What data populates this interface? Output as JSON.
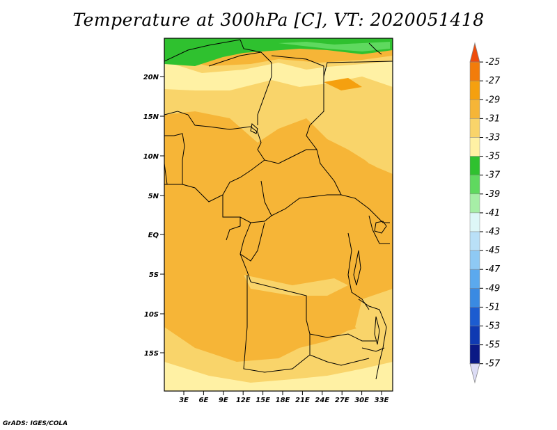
{
  "title": "Temperature at 300hPa [C], VT: 2020051418",
  "credit": "GrADS: IGES/COLA",
  "map": {
    "lat_ticks": [
      "20N",
      "15N",
      "10N",
      "5N",
      "EQ",
      "5S",
      "10S",
      "15S"
    ],
    "lon_ticks": [
      "3E",
      "6E",
      "9E",
      "12E",
      "15E",
      "18E",
      "21E",
      "24E",
      "27E",
      "30E",
      "33E"
    ],
    "lat_range": [
      -20,
      24
    ],
    "lon_range": [
      0,
      35
    ]
  },
  "colorbar": {
    "labels": [
      "-25",
      "-27",
      "-29",
      "-31",
      "-33",
      "-35",
      "-37",
      "-39",
      "-41",
      "-43",
      "-45",
      "-47",
      "-49",
      "-51",
      "-53",
      "-55",
      "-57"
    ],
    "colors": [
      "#ee4c0c",
      "#f27c0a",
      "#f5a00f",
      "#f6b537",
      "#f9d46a",
      "#fff1a4",
      "#2fc12f",
      "#5fd95f",
      "#a6eea6",
      "#ddf7f7",
      "#b9e0f7",
      "#8ec9f4",
      "#5ba9ee",
      "#3a8ae2",
      "#1c5cd0",
      "#0f3ab2",
      "#0a1985",
      "#dcdcf5"
    ]
  }
}
